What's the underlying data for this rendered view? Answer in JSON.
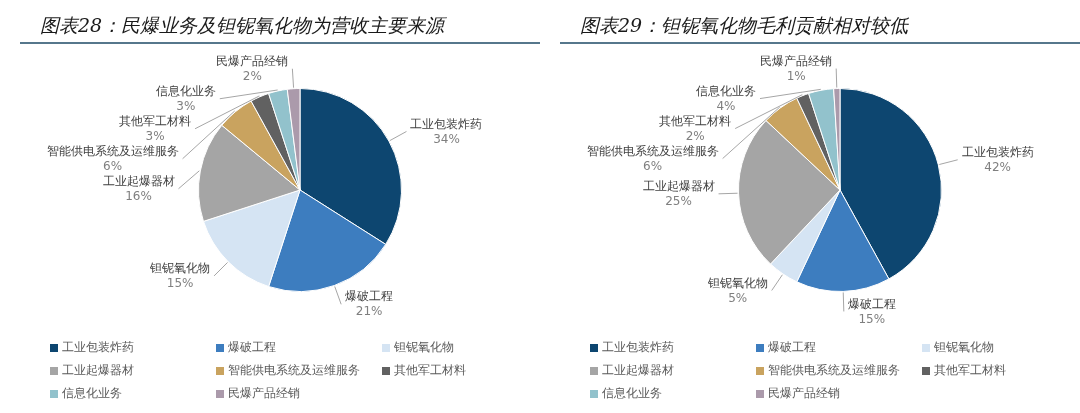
{
  "chart_data": [
    {
      "type": "pie",
      "title": "图表28：民爆业务及钽铌氧化物为营收主要来源",
      "categories": [
        "工业包装炸药",
        "爆破工程",
        "钽铌氧化物",
        "工业起爆器材",
        "智能供电系统及运维服务",
        "其他军工材料",
        "信息化业务",
        "民爆产品经销"
      ],
      "values": [
        34,
        21,
        15,
        16,
        6,
        3,
        3,
        2
      ],
      "value_labels": [
        "34%",
        "21%",
        "15%",
        "16%",
        "6%",
        "3%",
        "3%",
        "2%"
      ],
      "colors": [
        "#0d4670",
        "#3d7dbf",
        "#d5e4f3",
        "#a5a5a5",
        "#c9a35f",
        "#616161",
        "#92c2cc",
        "#ab9aab"
      ],
      "legend": "bottom"
    },
    {
      "type": "pie",
      "title": "图表29：钽铌氧化物毛利贡献相对较低",
      "categories": [
        "工业包装炸药",
        "爆破工程",
        "钽铌氧化物",
        "工业起爆器材",
        "智能供电系统及运维服务",
        "其他军工材料",
        "信息化业务",
        "民爆产品经销"
      ],
      "values": [
        42,
        15,
        5,
        25,
        6,
        2,
        4,
        1
      ],
      "value_labels": [
        "42%",
        "15%",
        "5%",
        "25%",
        "6%",
        "2%",
        "4%",
        "1%"
      ],
      "colors": [
        "#0d4670",
        "#3d7dbf",
        "#d5e4f3",
        "#a5a5a5",
        "#c9a35f",
        "#616161",
        "#92c2cc",
        "#ab9aab"
      ],
      "legend": "bottom"
    }
  ]
}
